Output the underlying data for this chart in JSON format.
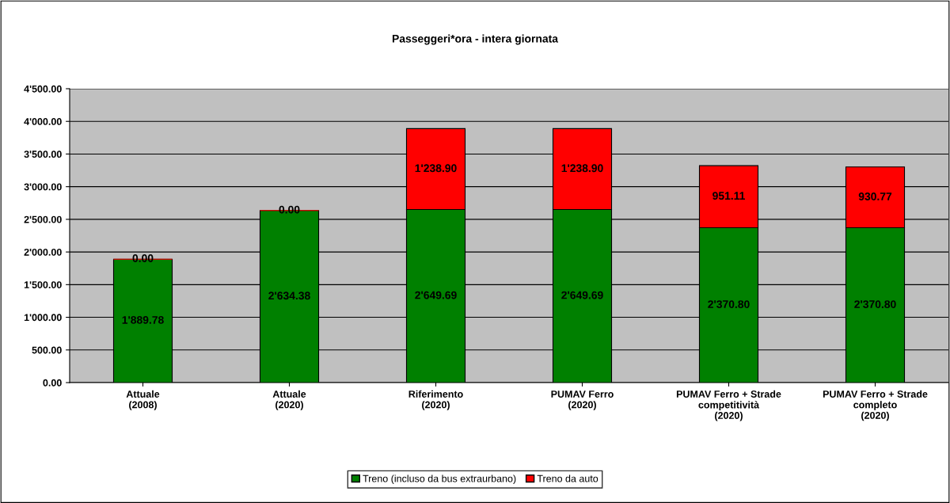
{
  "chart_data": {
    "type": "bar",
    "title": "Passeggeri*ora - intera giornata",
    "categories": [
      "Attuale\n(2008)",
      "Attuale\n(2020)",
      "Riferimento\n(2020)",
      "PUMAV Ferro\n(2020)",
      "PUMAV Ferro + Strade\ncompetitività\n(2020)",
      "PUMAV Ferro + Strade\ncompleto\n(2020)"
    ],
    "stacked": true,
    "series": [
      {
        "name": "Treno (incluso da bus extraurbano)",
        "color": "#008000",
        "values": [
          1889.78,
          2634.38,
          2649.69,
          2649.69,
          2370.8,
          2370.8
        ],
        "value_labels": [
          "1'889.78",
          "2'634.38",
          "2'649.69",
          "2'649.69",
          "2'370.80",
          "2'370.80"
        ]
      },
      {
        "name": "Treno da auto",
        "color": "#ff0000",
        "values": [
          0,
          0,
          1238.9,
          1238.9,
          951.11,
          930.77
        ],
        "value_labels": [
          "0.00",
          "0.00",
          "1'238.90",
          "1'238.90",
          "951.11",
          "930.77"
        ]
      }
    ],
    "ylim": [
      0,
      4500
    ],
    "yticks": [
      {
        "value": 0,
        "label": "0.00"
      },
      {
        "value": 500,
        "label": "500.00"
      },
      {
        "value": 1000,
        "label": "1'000.00"
      },
      {
        "value": 1500,
        "label": "1'500.00"
      },
      {
        "value": 2000,
        "label": "2'000.00"
      },
      {
        "value": 2500,
        "label": "2'500.00"
      },
      {
        "value": 3000,
        "label": "3'000.00"
      },
      {
        "value": 3500,
        "label": "3'500.00"
      },
      {
        "value": 4000,
        "label": "4'000.00"
      },
      {
        "value": 4500,
        "label": "4'500.00"
      }
    ],
    "grid": "y",
    "legend": "bottom"
  }
}
